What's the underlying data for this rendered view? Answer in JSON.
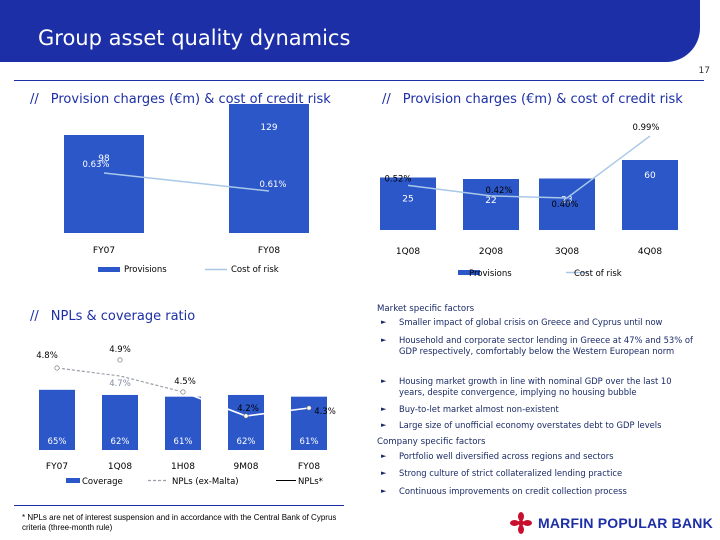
{
  "header": {
    "title": "Group asset quality dynamics",
    "page_number": "17"
  },
  "sections": {
    "left_top_title": "Provision charges (€m) & cost of credit risk",
    "right_top_title": "Provision charges (€m) & cost of credit risk",
    "npl_title": "NPLs & coverage ratio",
    "slashes": "//"
  },
  "colors": {
    "brand": "#1c2fa6",
    "bar": "#2b57c9",
    "line": "#a9c8e8",
    "npl_line": "#9aa0a8"
  },
  "chart_data": [
    {
      "type": "bar",
      "categories": [
        "FY07",
        "FY08"
      ],
      "series": [
        {
          "name": "Provisions",
          "values": [
            98,
            129
          ],
          "value_labels": [
            "98",
            "129"
          ]
        },
        {
          "name": "Cost of risk",
          "type": "line",
          "values": [
            0.63,
            0.61
          ],
          "value_labels": [
            "0.63%",
            "0.61%"
          ]
        }
      ]
    },
    {
      "type": "bar",
      "categories": [
        "1Q08",
        "2Q08",
        "3Q08",
        "4Q08"
      ],
      "series": [
        {
          "name": "Provisions",
          "values": [
            25,
            22,
            23,
            60
          ],
          "value_labels": [
            "25",
            "22",
            "23",
            "60"
          ]
        },
        {
          "name": "Cost of risk",
          "type": "line",
          "values": [
            0.52,
            0.42,
            0.4,
            0.99
          ],
          "value_labels": [
            "0.52%",
            "0.42%",
            "0.40%",
            "0.99%"
          ]
        }
      ]
    },
    {
      "type": "bar",
      "categories": [
        "FY07",
        "1Q08",
        "1H08",
        "9M08",
        "FY08"
      ],
      "series": [
        {
          "name": "Coverage",
          "values": [
            65,
            62,
            61,
            62,
            61
          ],
          "value_labels": [
            "65%",
            "62%",
            "61%",
            "62%",
            "61%"
          ]
        },
        {
          "name": "NPLs (ex-Malta)",
          "type": "line",
          "values": [
            4.8,
            4.7,
            4.5,
            4.2,
            4.3
          ],
          "value_labels": [
            "4.8%",
            "4.7%",
            "4.5%",
            "4.2%",
            "4.3%"
          ]
        },
        {
          "name": "NPLs*",
          "type": "line",
          "values": [
            4.8,
            4.9,
            4.5,
            4.2,
            4.3
          ],
          "value_labels": [
            "4.8%",
            "4.9%",
            "4.5%",
            "4.2%",
            "4.3%"
          ]
        }
      ]
    }
  ],
  "factors": {
    "market_heading": "Market specific factors",
    "market_items": [
      "Smaller impact of global crisis on Greece and Cyprus until now",
      "Household and corporate sector lending in Greece at 47% and 53% of GDP respectively, comfortably below the Western European norm",
      "Housing market growth in line with nominal GDP over the last 10 years, despite convergence, implying no housing bubble",
      "Buy-to-let market almost non-existent",
      "Large size of unofficial economy overstates debt to GDP levels"
    ],
    "company_heading": "Company specific factors",
    "company_items": [
      "Portfolio well diversified across regions and sectors",
      "Strong culture of strict collateralized lending practice",
      "Continuous improvements on credit collection process"
    ],
    "arrow": "►"
  },
  "footnote": "* NPLs are net of interest suspension and in accordance with the Central Bank of Cyprus criteria (three-month rule)",
  "logo": {
    "text": "MARFIN POPULAR BANK"
  }
}
